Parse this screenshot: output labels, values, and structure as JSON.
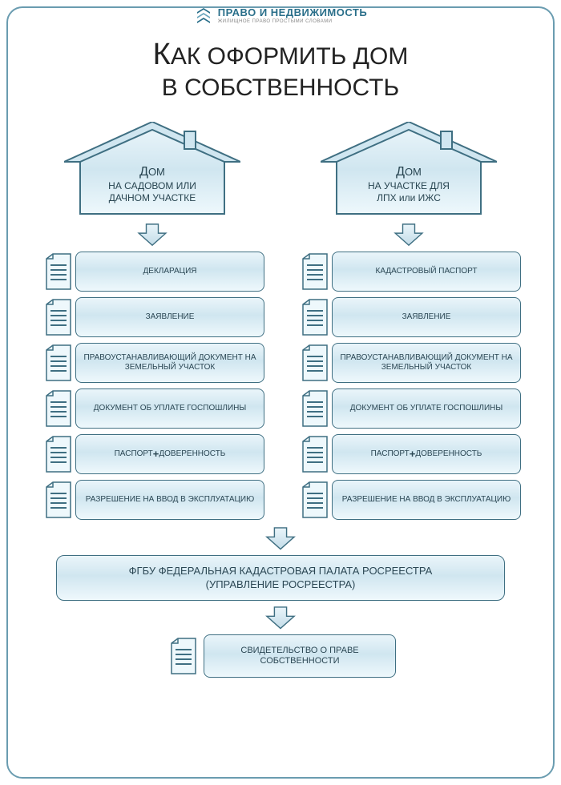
{
  "colors": {
    "border": "#6a9cb0",
    "stroke": "#3f6f82",
    "grad_top": "#eaf5fa",
    "grad_mid": "#d0e6f0",
    "grad_bot": "#eef8fc",
    "text": "#2b4754",
    "logo_blue": "#2a6f8a"
  },
  "logo": {
    "title": "ПРАВО И НЕДВИЖИМОСТЬ",
    "sub": "ЖИЛИЩНОЕ ПРАВО ПРОСТЫМИ СЛОВАМИ"
  },
  "title_line1_prefix": "К",
  "title_line1_rest": "АК ОФОРМИТЬ ДОМ",
  "title_line2": "В СОБСТВЕННОСТЬ",
  "left": {
    "house_lead_big": "Д",
    "house_lead_rest": "ОМ",
    "house_sub1": "НА САДОВОМ ИЛИ",
    "house_sub2": "ДАЧНОМ УЧАСТКЕ",
    "items": [
      "ДЕКЛАРАЦИЯ",
      "ЗАЯВЛЕНИЕ",
      "ПРАВОУСТАНАВЛИВАЮЩИЙ ДОКУМЕНТ НА ЗЕМЕЛЬНЫЙ УЧАСТОК",
      "ДОКУМЕНТ ОБ УПЛАТЕ ГОСПОШЛИНЫ",
      "ПАСПОРТ + ДОВЕРЕННОСТЬ",
      "РАЗРЕШЕНИЕ НА ВВОД В ЭКСПЛУАТАЦИЮ"
    ]
  },
  "right": {
    "house_lead_big": "Д",
    "house_lead_rest": "ОМ",
    "house_sub1": "НА УЧАСТКЕ ДЛЯ",
    "house_sub2": "ЛПХ или ИЖС",
    "items": [
      "КАДАСТРОВЫЙ ПАСПОРТ",
      "ЗАЯВЛЕНИЕ",
      "ПРАВОУСТАНАВЛИВАЮЩИЙ ДОКУМЕНТ НА ЗЕМЕЛЬНЫЙ УЧАСТОК",
      "ДОКУМЕНТ ОБ УПЛАТЕ ГОСПОШЛИНЫ",
      "ПАСПОРТ + ДОВЕРЕННОСТЬ",
      "РАЗРЕШЕНИЕ НА ВВОД В ЭКСПЛУАТАЦИЮ"
    ]
  },
  "merge_box_line1": "ФГБУ ФЕДЕРАЛЬНАЯ КАДАСТРОВАЯ ПАЛАТА РОСРЕЕСТРА",
  "merge_box_line2": "(УПРАВЛЕНИЕ РОСРЕЕСТРА)",
  "final_box": "СВИДЕТЕЛЬСТВО О ПРАВЕ СОБСТВЕННОСТИ"
}
